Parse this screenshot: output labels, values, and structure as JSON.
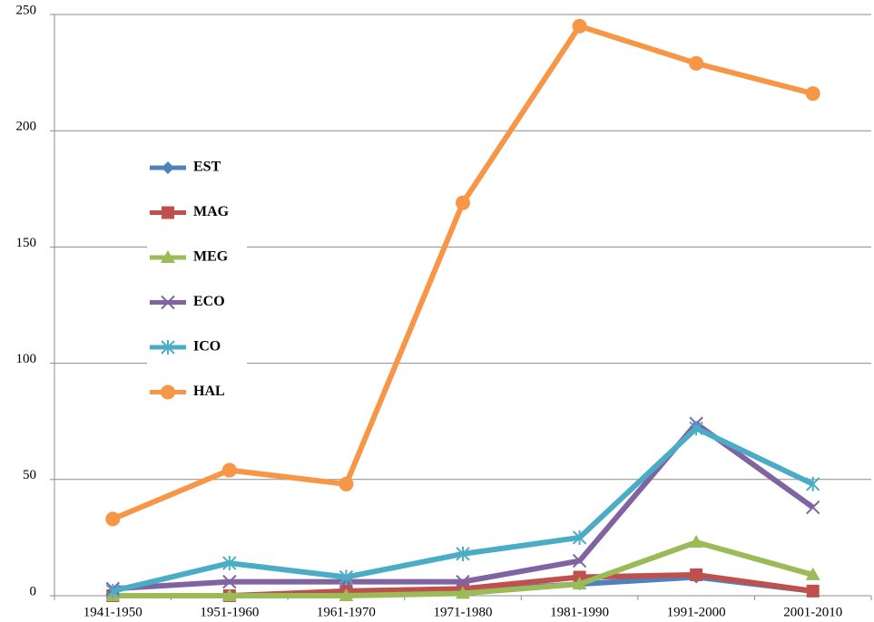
{
  "chart_data": {
    "type": "line",
    "categories": [
      "1941-1950",
      "1951-1960",
      "1961-1970",
      "1971-1980",
      "1981-1990",
      "1991-2000",
      "2001-2010"
    ],
    "series": [
      {
        "name": "EST",
        "color": "#4f81bd",
        "marker": "diamond",
        "values": [
          0,
          0,
          1,
          2,
          5,
          8,
          2
        ]
      },
      {
        "name": "MAG",
        "color": "#c0504d",
        "marker": "square",
        "values": [
          0,
          0,
          2,
          3,
          8,
          9,
          2
        ]
      },
      {
        "name": "MEG",
        "color": "#9bbb59",
        "marker": "triangle",
        "values": [
          0,
          0,
          0,
          1,
          5,
          23,
          9
        ]
      },
      {
        "name": "ECO",
        "color": "#8064a2",
        "marker": "x",
        "values": [
          3,
          6,
          6,
          6,
          15,
          74,
          38
        ]
      },
      {
        "name": "ICO",
        "color": "#4bacc6",
        "marker": "asterisk",
        "values": [
          2,
          14,
          8,
          18,
          25,
          72,
          48
        ]
      },
      {
        "name": "HAL",
        "color": "#f79646",
        "marker": "circle",
        "values": [
          33,
          54,
          48,
          169,
          245,
          229,
          216
        ]
      }
    ],
    "ylim": [
      0,
      250
    ],
    "yticks": [
      0,
      50,
      100,
      150,
      200,
      250
    ],
    "grid": true
  }
}
